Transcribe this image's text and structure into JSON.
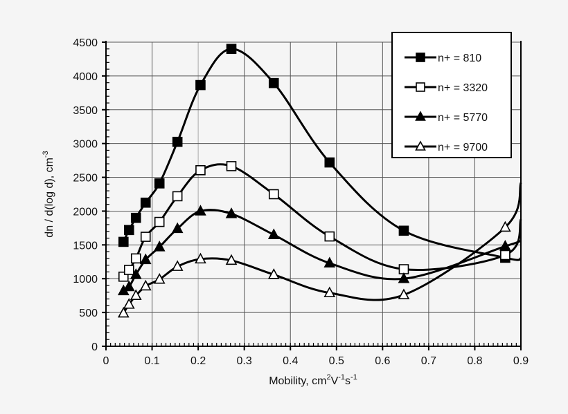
{
  "chart_data": {
    "type": "line",
    "xlabel": "Mobility, cm",
    "xlabel_parts": {
      "base": "Mobility, cm",
      "sup1": "2",
      "mid1": "V",
      "sup2": "-1",
      "mid2": "s",
      "sup3": "-1"
    },
    "ylabel_parts": {
      "base": "dn / d(log d), cm",
      "sup": "-3"
    },
    "xlim": [
      0,
      0.9
    ],
    "ylim": [
      0,
      4500
    ],
    "x_ticks": [
      "0",
      "0.1",
      "0.2",
      "0.3",
      "0.4",
      "0.5",
      "0.6",
      "0.7",
      "0.8",
      "0.9"
    ],
    "y_ticks": [
      "0",
      "500",
      "1000",
      "1500",
      "2000",
      "2500",
      "3000",
      "3500",
      "4000",
      "4500"
    ],
    "grid": true,
    "legend_position": "top-right",
    "x": [
      0.038,
      0.05,
      0.065,
      0.086,
      0.116,
      0.155,
      0.205,
      0.272,
      0.364,
      0.485,
      0.646,
      0.866
    ],
    "series": [
      {
        "name": "n+ = 810",
        "marker": "filled-square",
        "values": [
          1545,
          1720,
          1900,
          2125,
          2410,
          3025,
          3865,
          4400,
          3895,
          2720,
          1710,
          1310
        ],
        "curve_end": 1300
      },
      {
        "name": "n+ = 3320",
        "marker": "open-square",
        "values": [
          1030,
          1130,
          1300,
          1620,
          1840,
          2220,
          2605,
          2665,
          2250,
          1625,
          1140,
          1350
        ],
        "curve_end": 1880
      },
      {
        "name": "n+ = 5770",
        "marker": "filled-triangle",
        "values": [
          820,
          880,
          1060,
          1280,
          1470,
          1740,
          2000,
          1960,
          1650,
          1230,
          1000,
          1480
        ],
        "curve_end": 1560
      },
      {
        "name": "n+ = 9700",
        "marker": "open-triangle",
        "values": [
          490,
          620,
          750,
          890,
          990,
          1180,
          1290,
          1270,
          1060,
          790,
          760,
          1760
        ],
        "curve_end": 2420
      }
    ],
    "colors": {
      "background": "#f5f5f5",
      "line": "#000000",
      "grid": "#555555"
    }
  }
}
